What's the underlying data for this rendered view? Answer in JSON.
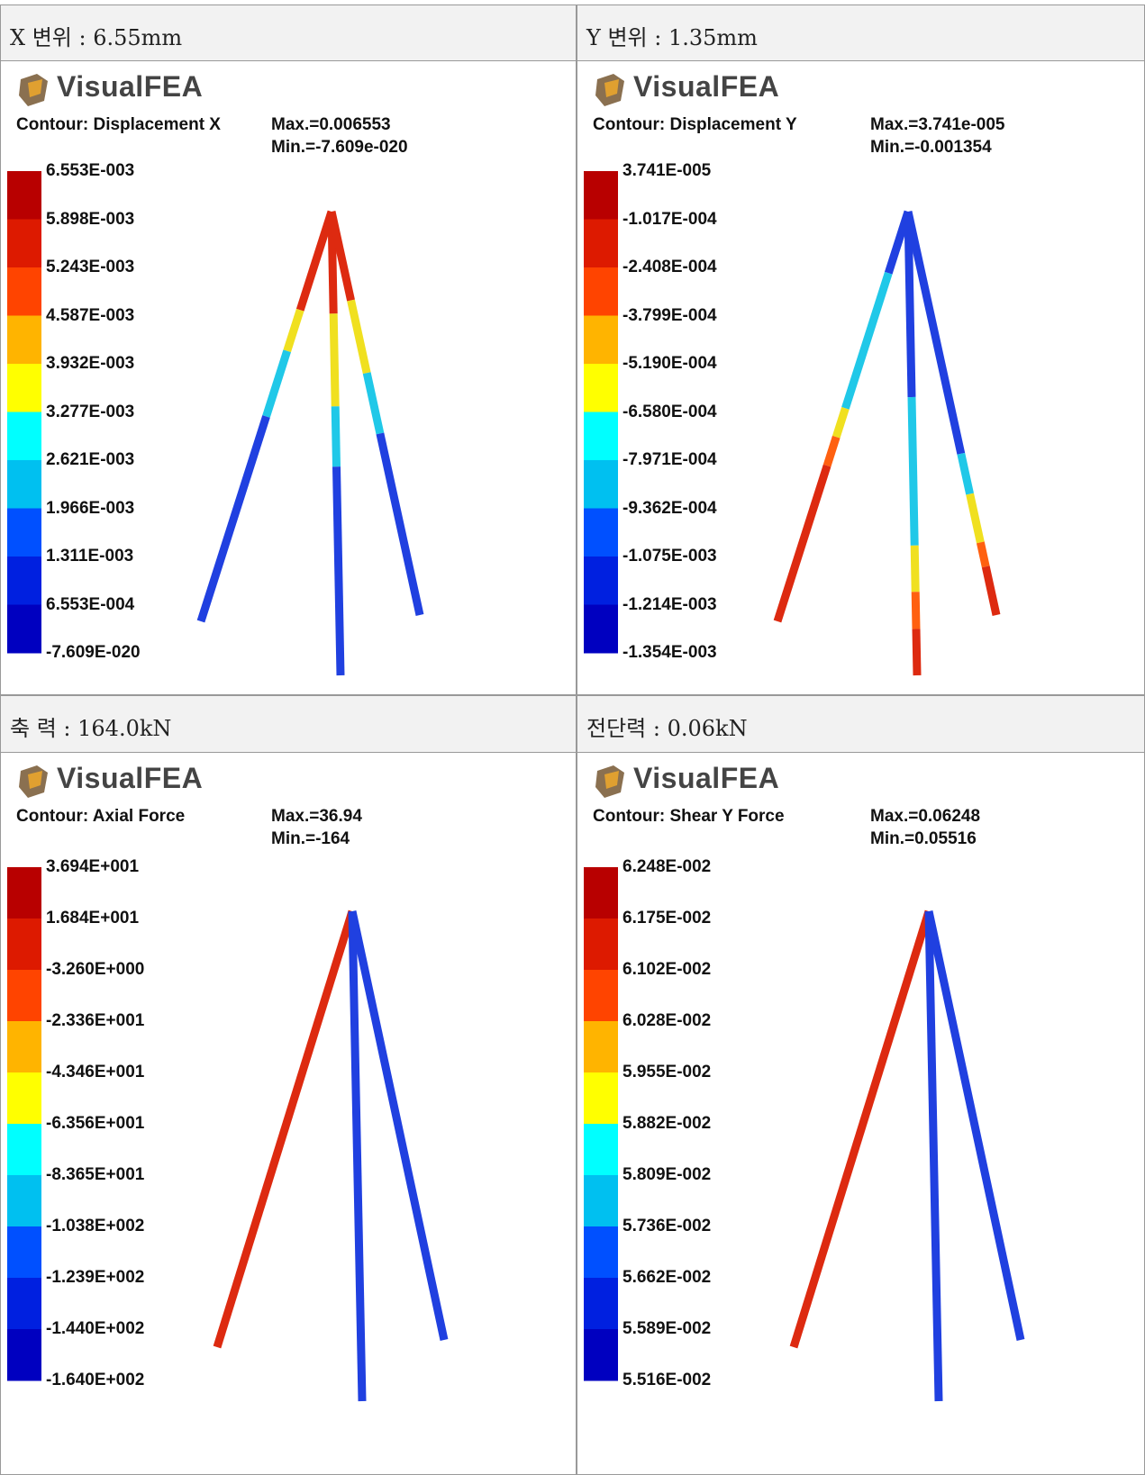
{
  "panels": [
    {
      "caption": "X 변위 : 6.55mm",
      "logo": "VisualFEA",
      "contour": "Contour: Displacement X",
      "max": "Max.=0.006553",
      "min": "Min.=-7.609e-020",
      "legend": [
        "6.553E-003",
        "5.898E-003",
        "5.243E-003",
        "4.587E-003",
        "3.932E-003",
        "3.277E-003",
        "2.621E-003",
        "1.966E-003",
        "1.311E-003",
        "6.553E-004",
        "-7.609E-020"
      ]
    },
    {
      "caption": "Y 변위 : 1.35mm",
      "logo": "VisualFEA",
      "contour": "Contour: Displacement Y",
      "max": "Max.=3.741e-005",
      "min": "Min.=-0.001354",
      "legend": [
        "3.741E-005",
        "-1.017E-004",
        "-2.408E-004",
        "-3.799E-004",
        "-5.190E-004",
        "-6.580E-004",
        "-7.971E-004",
        "-9.362E-004",
        "-1.075E-003",
        "-1.214E-003",
        "-1.354E-003"
      ]
    },
    {
      "caption": "축 력 : 164.0kN",
      "logo": "VisualFEA",
      "contour": "Contour: Axial Force",
      "max": "Max.=36.94",
      "min": "Min.=-164",
      "legend": [
        "3.694E+001",
        "1.684E+001",
        "-3.260E+000",
        "-2.336E+001",
        "-4.346E+001",
        "-6.356E+001",
        "-8.365E+001",
        "-1.038E+002",
        "-1.239E+002",
        "-1.440E+002",
        "-1.640E+002"
      ]
    },
    {
      "caption": "전단력 : 0.06kN",
      "logo": "VisualFEA",
      "contour": "Contour: Shear Y Force",
      "max": "Max.=0.06248",
      "min": "Min.=0.05516",
      "legend": [
        "6.248E-002",
        "6.175E-002",
        "6.102E-002",
        "6.028E-002",
        "5.955E-002",
        "5.882E-002",
        "5.809E-002",
        "5.736E-002",
        "5.662E-002",
        "5.589E-002",
        "5.516E-002"
      ]
    }
  ]
}
